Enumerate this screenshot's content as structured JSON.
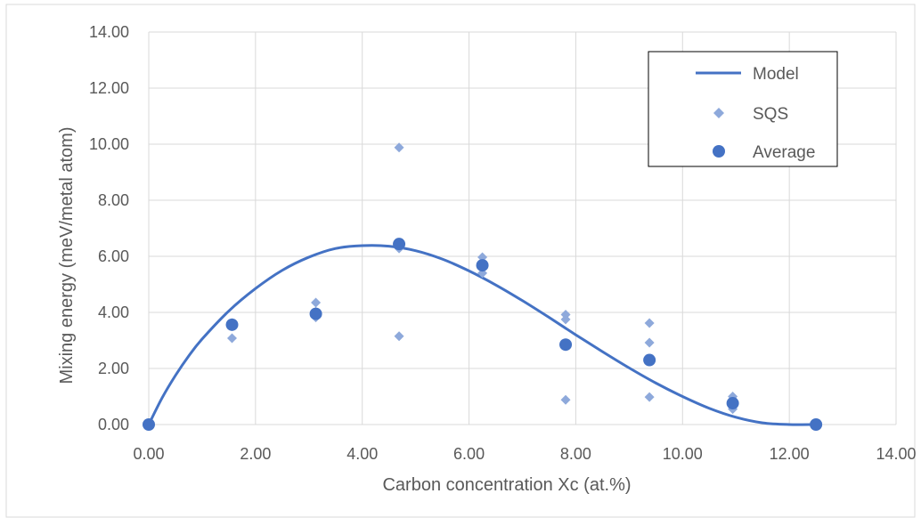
{
  "chart_data": {
    "type": "scatter",
    "xlabel": "Carbon concentration Xc (at.%)",
    "ylabel": "Mixing energy (meV/metal atom)",
    "xlim": [
      0,
      14
    ],
    "ylim": [
      0,
      14
    ],
    "x_ticks": [
      "0.00",
      "2.00",
      "4.00",
      "6.00",
      "8.00",
      "10.00",
      "12.00",
      "14.00"
    ],
    "y_ticks": [
      "0.00",
      "2.00",
      "4.00",
      "6.00",
      "8.00",
      "10.00",
      "12.00",
      "14.00"
    ],
    "grid": true,
    "legend_position": "top-right",
    "colors": {
      "model": "#4472C4",
      "sqs": "#8EA9DB",
      "average": "#4472C4",
      "grid": "#D9D9D9",
      "frame": "#D9D9D9"
    },
    "series": [
      {
        "name": "Model",
        "style": "line",
        "x": [
          0,
          0.25,
          0.5,
          0.75,
          1.0,
          1.5,
          2.0,
          2.5,
          3.0,
          3.5,
          4.0,
          4.5,
          5.0,
          5.5,
          6.0,
          6.5,
          7.0,
          7.5,
          8.0,
          8.5,
          9.0,
          9.5,
          10.0,
          10.5,
          11.0,
          11.5,
          12.0,
          12.5
        ],
        "y": [
          0,
          0.95,
          1.75,
          2.45,
          3.05,
          4.05,
          4.85,
          5.5,
          5.97,
          6.28,
          6.38,
          6.36,
          6.2,
          5.9,
          5.48,
          4.98,
          4.42,
          3.82,
          3.2,
          2.6,
          2.02,
          1.48,
          1.0,
          0.58,
          0.26,
          0.06,
          0.0,
          0.0
        ]
      },
      {
        "name": "SQS",
        "style": "diamond",
        "x": [
          0,
          1.56,
          1.56,
          3.13,
          3.13,
          3.13,
          4.69,
          4.69,
          4.69,
          6.25,
          6.25,
          7.81,
          7.81,
          7.81,
          9.38,
          9.38,
          9.38,
          10.94,
          10.94,
          12.5
        ],
        "y": [
          0,
          3.62,
          3.08,
          4.35,
          4.02,
          3.82,
          9.88,
          6.28,
          3.15,
          5.97,
          5.4,
          3.92,
          3.75,
          0.88,
          3.62,
          2.92,
          0.98,
          1.0,
          0.55,
          0
        ]
      },
      {
        "name": "Average",
        "style": "circle",
        "x": [
          0,
          1.56,
          3.13,
          4.69,
          6.25,
          7.81,
          9.38,
          10.94,
          12.5
        ],
        "y": [
          0,
          3.56,
          3.95,
          6.44,
          5.68,
          2.85,
          2.3,
          0.76,
          0
        ]
      }
    ]
  }
}
